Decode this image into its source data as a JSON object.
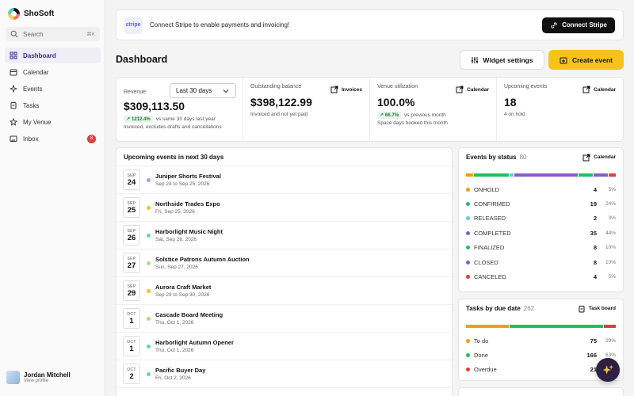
{
  "brand": {
    "name": "ShoSoft"
  },
  "search": {
    "placeholder": "Search",
    "shortcut": "⌘K"
  },
  "nav": [
    {
      "label": "Dashboard",
      "icon": "grid-icon"
    },
    {
      "label": "Calendar",
      "icon": "calendar-icon"
    },
    {
      "label": "Events",
      "icon": "sparkle-icon"
    },
    {
      "label": "Tasks",
      "icon": "clipboard-icon"
    },
    {
      "label": "My Venue",
      "icon": "star-icon"
    },
    {
      "label": "Inbox",
      "icon": "inbox-icon",
      "badge": "8"
    }
  ],
  "user": {
    "name": "Jordan Mitchell",
    "sub": "View profile"
  },
  "banner": {
    "text": "Connect Stripe to enable payments and invoicing!",
    "logo": "stripe",
    "button": "Connect Stripe"
  },
  "page": {
    "title": "Dashboard",
    "widget_button": "Widget settings",
    "create_button": "Create event"
  },
  "stats": {
    "revenue": {
      "label": "Revenue",
      "range": "Last 30 days",
      "value": "$309,113.50",
      "delta": "1212.4%",
      "delta_text": "vs same 30 days last year",
      "sub": "Invoiced, excludes drafts and cancellations"
    },
    "outstanding": {
      "label": "Outstanding balance",
      "link": "Invoices",
      "value": "$398,122.99",
      "sub": "Invoiced and not yet paid"
    },
    "utilization": {
      "label": "Venue utilization",
      "link": "Calendar",
      "value": "100.0%",
      "delta": "66.7%",
      "delta_text": "vs previous month",
      "sub": "Space days booked this month"
    },
    "upcoming": {
      "label": "Upcoming events",
      "link": "Calendar",
      "value": "18",
      "sub": "4 on hold"
    }
  },
  "events_card": {
    "title": "Upcoming events in next 30 days",
    "items": [
      {
        "mon": "SEP",
        "day": "24",
        "name": "Juniper Shorts Festival",
        "date": "Sep 24 to Sep 25, 2026",
        "dot": "#9aa5e8"
      },
      {
        "mon": "SEP",
        "day": "25",
        "name": "Northside Trades Expo",
        "date": "Fri, Sep 25, 2026",
        "dot": "#f7c21b"
      },
      {
        "mon": "SEP",
        "day": "26",
        "name": "Harborlight Music Night",
        "date": "Sat, Sep 26, 2026",
        "dot": "#5ed0d0"
      },
      {
        "mon": "SEP",
        "day": "27",
        "name": "Solstice Patrons Autumn Auction",
        "date": "Sun, Sep 27, 2026",
        "dot": "#a8e07a"
      },
      {
        "mon": "SEP",
        "day": "29",
        "name": "Aurora Craft Market",
        "date": "Sep 29 to Sep 30, 2026",
        "dot": "#f7c21b"
      },
      {
        "mon": "OCT",
        "day": "1",
        "name": "Cascade Board Meeting",
        "date": "Thu, Oct 1, 2026",
        "dot": "#a8e07a"
      },
      {
        "mon": "OCT",
        "day": "1",
        "name": "Harborlight Autumn Opener",
        "date": "Thu, Oct 1, 2026",
        "dot": "#5ed0d0"
      },
      {
        "mon": "OCT",
        "day": "2",
        "name": "Pacific Buyer Day",
        "date": "Fri, Oct 2, 2026",
        "dot": "#5ed0d0"
      }
    ]
  },
  "status_card": {
    "title": "Events by status",
    "count": "80",
    "link": "Calendar",
    "bar": [
      {
        "color": "#f39c12",
        "pct": 5
      },
      {
        "color": "#1fbf5f",
        "pct": 24
      },
      {
        "color": "#5ed0d0",
        "pct": 3
      },
      {
        "color": "#8e5bc2",
        "pct": 44
      },
      {
        "color": "#1fbf5f",
        "pct": 10
      },
      {
        "color": "#8e5bc2",
        "pct": 10
      },
      {
        "color": "#e23b3b",
        "pct": 5
      }
    ],
    "rows": [
      {
        "label": "ONHOLD",
        "count": "4",
        "pct": "5%",
        "color": "#f39c12"
      },
      {
        "label": "CONFIRMED",
        "count": "19",
        "pct": "24%",
        "color": "#1fbf5f"
      },
      {
        "label": "RELEASED",
        "count": "2",
        "pct": "3%",
        "color": "#5ed0d0"
      },
      {
        "label": "COMPLETED",
        "count": "35",
        "pct": "44%",
        "color": "#8e5bc2"
      },
      {
        "label": "FINALIZED",
        "count": "8",
        "pct": "10%",
        "color": "#1fbf5f"
      },
      {
        "label": "CLOSED",
        "count": "8",
        "pct": "10%",
        "color": "#8e5bc2"
      },
      {
        "label": "CANCELED",
        "count": "4",
        "pct": "5%",
        "color": "#e23b3b"
      }
    ]
  },
  "tasks_card": {
    "title": "Tasks by due date",
    "count": "262",
    "link": "Task board",
    "bar": [
      {
        "color": "#f39c12",
        "pct": 29
      },
      {
        "color": "#1fbf5f",
        "pct": 63
      },
      {
        "color": "#e23b3b",
        "pct": 8
      }
    ],
    "rows": [
      {
        "label": "To do",
        "count": "75",
        "pct": "29%",
        "color": "#f39c12"
      },
      {
        "label": "Done",
        "count": "166",
        "pct": "63%",
        "color": "#1fbf5f"
      },
      {
        "label": "Overdue",
        "count": "21",
        "pct": "",
        "color": "#e23b3b"
      }
    ]
  }
}
